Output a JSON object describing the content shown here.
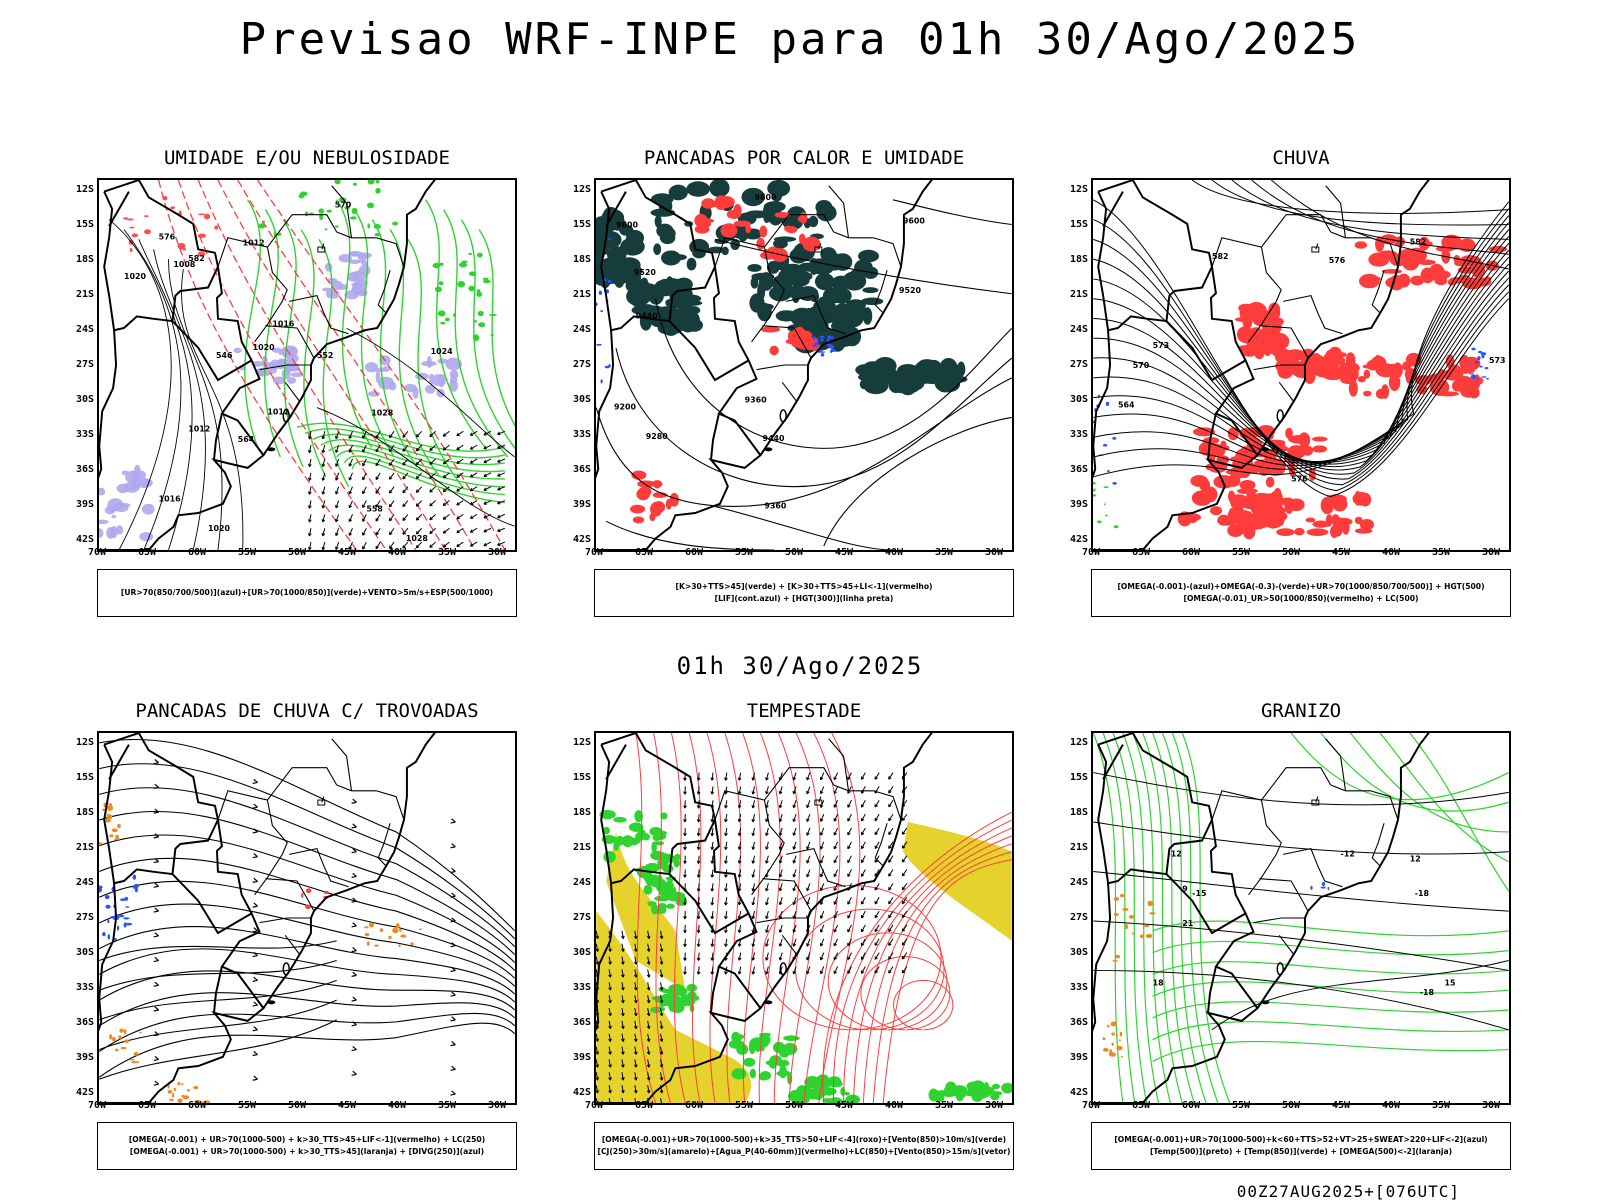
{
  "title": "Previsao WRF-INPE  para 01h 30/Ago/2025",
  "mid_title": "01h 30/Ago/2025",
  "footer": "00Z27AUG2025+[076UTC]",
  "lat_ticks": [
    "12S",
    "15S",
    "18S",
    "21S",
    "24S",
    "27S",
    "30S",
    "33S",
    "36S",
    "39S",
    "42S"
  ],
  "lon_ticks": [
    "70W",
    "65W",
    "60W",
    "55W",
    "50W",
    "45W",
    "40W",
    "35W",
    "30W"
  ],
  "colors": {
    "red": "#ff3c3c",
    "green": "#2fd32f",
    "blue": "#2a52ff",
    "lavender": "#b0a8ee",
    "dark_teal": "#173c3c",
    "yellow": "#e6d22d",
    "orange": "#f08a1e",
    "black": "#000000"
  },
  "panels": [
    {
      "title": "UMIDADE E/OU NEBULOSIDADE",
      "legend": [
        "[UR>70(850/700/500)](azul)+[UR>70(1000/850)](verde)+VENTO>5m/s+ESP(500/1000)"
      ],
      "contour_labels": [
        "1012",
        "1008",
        "1020",
        "1012",
        "1016",
        "1020",
        "1024",
        "1028",
        "1012",
        "1016",
        "1020",
        "1028",
        "570",
        "576",
        "582",
        "564",
        "558",
        "552",
        "546"
      ]
    },
    {
      "title": "PANCADAS POR CALOR E UMIDADE",
      "legend": [
        "[K>30+TTS>45](verde) + [K>30+TTS>45+LI<-1](vermelho)",
        "[LIF](cont.azul) + [HGT(300)](linha preta)"
      ],
      "contour_labels": [
        "9600",
        "9520",
        "9440",
        "9360",
        "9280",
        "9200",
        "9520",
        "9600",
        "9520",
        "9440",
        "9360"
      ]
    },
    {
      "title": "CHUVA",
      "legend": [
        "[OMEGA(-0.001)-(azul)+OMEGA(-0.3)-(verde)+UR>70(1000/850/700/500)] + HGT(500)",
        "[OMEGA(-0.01)_UR>50(1000/850)(vermelho) + LC(500)"
      ],
      "contour_labels": [
        "582",
        "582",
        "576",
        "573",
        "570",
        "564",
        "576",
        "573"
      ]
    },
    {
      "title": "PANCADAS DE CHUVA C/ TROVOADAS",
      "legend": [
        "[OMEGA(-0.001) + UR>70(1000-500) + k>30_TTS>45+LIF<-1](vermelho) + LC(250)",
        "[OMEGA(-0.001) + UR>70(1000-500) + k>30_TTS>45](laranja) + [DIVG(250)](azul)"
      ],
      "contour_labels": []
    },
    {
      "title": "TEMPESTADE",
      "legend": [
        "[OMEGA(-0.001)+UR>70(1000-500)+k>35_TTS>50+LIF<-4](roxo)+[Vento(850)>10m/s](verde)",
        "[CJ(250)>30m/s](amarelo)+[Agua_P(40-60mm)](vermelho)+LC(850)+[Vento(850)>15m/s](vetor)"
      ],
      "contour_labels": []
    },
    {
      "title": "GRANIZO",
      "legend": [
        "[OMEGA(-0.001)+UR>70(1000-500)+k<60+TTS>52+VT>25+SWEAT>220+LIF<-2](azul)",
        "[Temp(500)](preto) + [Temp(850)](verde) + [OMEGA(500)<-2](laranja)"
      ],
      "contour_labels": [
        "-12",
        "-12",
        "-15",
        "-18",
        "-18",
        "15",
        "12",
        "9",
        "21",
        "18"
      ]
    }
  ]
}
